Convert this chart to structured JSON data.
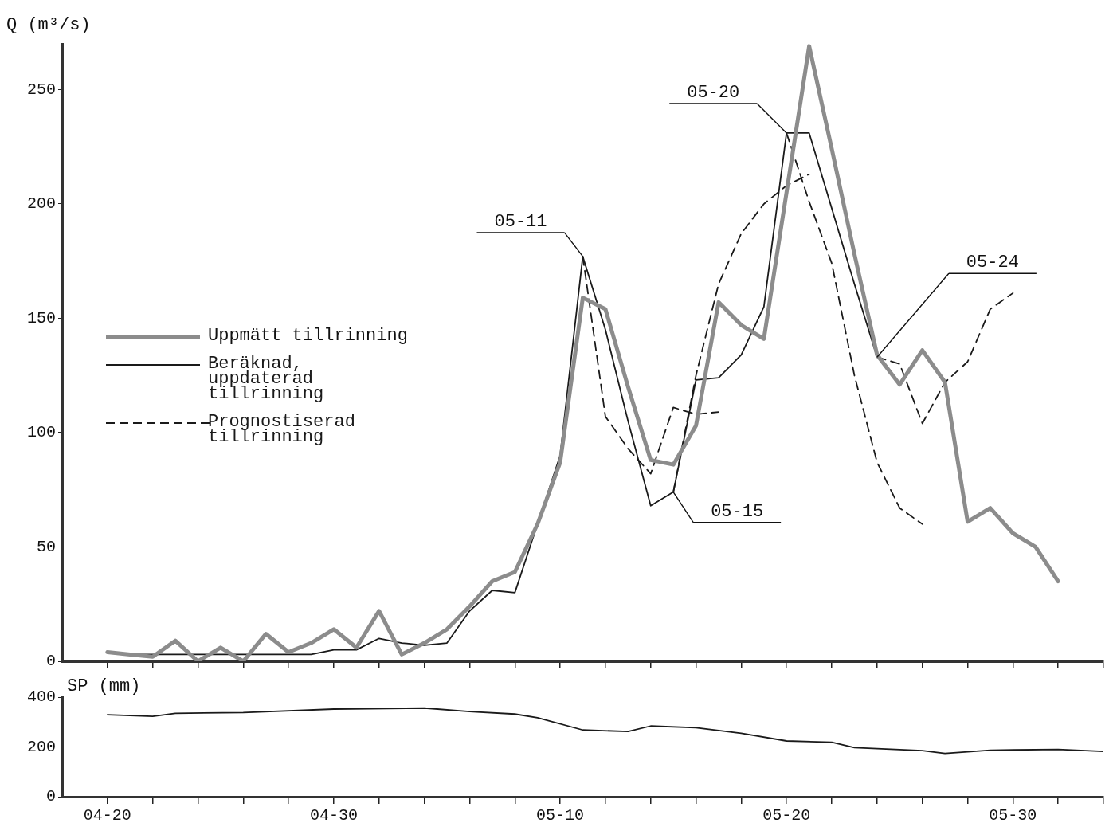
{
  "chart_data": [
    {
      "type": "line",
      "ylabel": "Q (m³/s)",
      "xlim": [
        "--04-18",
        "--06-03"
      ],
      "xticks": [
        {
          "value": "--04-20",
          "label": null
        },
        {
          "value": "--04-22",
          "label": null
        },
        {
          "value": "--04-24",
          "label": null
        },
        {
          "value": "--04-26",
          "label": null
        },
        {
          "value": "--04-28",
          "label": null
        },
        {
          "value": "--04-30",
          "label": null
        },
        {
          "value": "--05-02",
          "label": null
        },
        {
          "value": "--05-04",
          "label": null
        },
        {
          "value": "--05-06",
          "label": null
        },
        {
          "value": "--05-08",
          "label": null
        },
        {
          "value": "--05-10",
          "label": null
        },
        {
          "value": "--05-12",
          "label": null
        },
        {
          "value": "--05-14",
          "label": null
        },
        {
          "value": "--05-16",
          "label": null
        },
        {
          "value": "--05-18",
          "label": null
        },
        {
          "value": "--05-20",
          "label": null
        },
        {
          "value": "--05-22",
          "label": null
        },
        {
          "value": "--05-24",
          "label": null
        },
        {
          "value": "--05-26",
          "label": null
        },
        {
          "value": "--05-28",
          "label": null
        },
        {
          "value": "--05-30",
          "label": null
        },
        {
          "value": "--06-01",
          "label": null
        },
        {
          "value": "--06-03",
          "label": null
        }
      ],
      "ylim": [
        0,
        270
      ],
      "yticks": [
        0,
        50,
        100,
        150,
        200,
        250
      ],
      "tick_labels": "y",
      "legend": "left",
      "marker": "none",
      "series": [
        {
          "name": "Uppmätt tillrinning",
          "color": "#8c8c8c",
          "line_style": "solid",
          "x": [
            "--04-20",
            "--04-21",
            "--04-22",
            "--04-23",
            "--04-24",
            "--04-25",
            "--04-26",
            "--04-27",
            "--04-28",
            "--04-29",
            "--04-30",
            "--05-01",
            "--05-02",
            "--05-03",
            "--05-04",
            "--05-05",
            "--05-06",
            "--05-07",
            "--05-08",
            "--05-09",
            "--05-10",
            "--05-11",
            "--05-12",
            "--05-13",
            "--05-14",
            "--05-15",
            "--05-16",
            "--05-17",
            "--05-18",
            "--05-19",
            "--05-20",
            "--05-21",
            "--05-22",
            "--05-23",
            "--05-24",
            "--05-25",
            "--05-26",
            "--05-27",
            "--05-28",
            "--05-29",
            "--05-30",
            "--05-31",
            "--06-01"
          ],
          "values": [
            4,
            3,
            2,
            9,
            0,
            6,
            0,
            12,
            4,
            8,
            14,
            6,
            22,
            3,
            8,
            14,
            24,
            35,
            39,
            60,
            87,
            159,
            154,
            120,
            88,
            86,
            103,
            157,
            147,
            141,
            205,
            269,
            224,
            178,
            134,
            121,
            136,
            122,
            61,
            67,
            56,
            50,
            35
          ]
        },
        {
          "name": "Beräknad, uppdaterad tillrinning",
          "color": "#1a1a1a",
          "line_style": "solid",
          "x": [
            "--04-21",
            "--04-22",
            "--04-23",
            "--04-24",
            "--04-25",
            "--04-26",
            "--04-27",
            "--04-28",
            "--04-29",
            "--04-30",
            "--05-01",
            "--05-02",
            "--05-03",
            "--05-04",
            "--05-05",
            "--05-06",
            "--05-07",
            "--05-08",
            "--05-09",
            "--05-10",
            "--05-11",
            "--05-12",
            "--05-13",
            "--05-14",
            "--05-15",
            "--05-16",
            "--05-17",
            "--05-18",
            "--05-19",
            "--05-20",
            "--05-21",
            "--05-22",
            "--05-23",
            "--05-24"
          ],
          "values": [
            3,
            3,
            3,
            3,
            3,
            3,
            3,
            3,
            3,
            5,
            5,
            10,
            8,
            7,
            8,
            22,
            31,
            30,
            60,
            90,
            177,
            145,
            105,
            68,
            74,
            123,
            124,
            134,
            155,
            231,
            231,
            198,
            165,
            133
          ]
        },
        {
          "name": "Prognostiserad tillrinning",
          "color": "#1a1a1a",
          "line_style": "dashed",
          "x": [
            "--05-11",
            "--05-12",
            "--05-13",
            "--05-14",
            "--05-15",
            "--05-16",
            "--05-17"
          ],
          "values": [
            177,
            107,
            93,
            82,
            111,
            108,
            109
          ]
        },
        {
          "color": "#1a1a1a",
          "line_style": "dashed",
          "x": [
            "--05-15",
            "--05-16",
            "--05-17",
            "--05-18",
            "--05-19",
            "--05-20",
            "--05-21"
          ],
          "values": [
            74,
            125,
            165,
            187,
            200,
            208,
            213
          ]
        },
        {
          "color": "#1a1a1a",
          "line_style": "dashed",
          "x": [
            "--05-20",
            "--05-21",
            "--05-22",
            "--05-23",
            "--05-24",
            "--05-25",
            "--05-26"
          ],
          "values": [
            231,
            201,
            174,
            125,
            87,
            67,
            60
          ]
        },
        {
          "color": "#1a1a1a",
          "line_style": "dashed",
          "x": [
            "--05-24",
            "--05-25",
            "--05-26",
            "--05-27",
            "--05-28",
            "--05-29",
            "--05-30"
          ],
          "values": [
            133,
            130,
            104,
            122,
            131,
            154,
            161
          ]
        }
      ],
      "annotations": [
        {
          "text": "05-11",
          "x": "--05-11",
          "y": 177
        },
        {
          "text": "05-15",
          "x": "--05-15",
          "y": 74
        },
        {
          "text": "05-20",
          "x": "--05-20",
          "y": 231
        },
        {
          "text": "05-24",
          "x": "--05-24",
          "y": 133
        }
      ]
    },
    {
      "type": "line",
      "ylabel": "SP (mm)",
      "xlim": [
        "--04-18",
        "--06-03"
      ],
      "xticks": [
        {
          "value": "--04-20",
          "label": "04-20"
        },
        {
          "value": "--04-22",
          "label": null
        },
        {
          "value": "--04-24",
          "label": null
        },
        {
          "value": "--04-26",
          "label": null
        },
        {
          "value": "--04-28",
          "label": null
        },
        {
          "value": "--04-30",
          "label": "04-30"
        },
        {
          "value": "--05-02",
          "label": null
        },
        {
          "value": "--05-04",
          "label": null
        },
        {
          "value": "--05-06",
          "label": null
        },
        {
          "value": "--05-08",
          "label": null
        },
        {
          "value": "--05-10",
          "label": "05-10"
        },
        {
          "value": "--05-12",
          "label": null
        },
        {
          "value": "--05-14",
          "label": null
        },
        {
          "value": "--05-16",
          "label": null
        },
        {
          "value": "--05-18",
          "label": null
        },
        {
          "value": "--05-20",
          "label": "05-20"
        },
        {
          "value": "--05-22",
          "label": null
        },
        {
          "value": "--05-24",
          "label": null
        },
        {
          "value": "--05-26",
          "label": null
        },
        {
          "value": "--05-28",
          "label": null
        },
        {
          "value": "--05-30",
          "label": "05-30"
        },
        {
          "value": "--06-01",
          "label": null
        },
        {
          "value": "--06-03",
          "label": null
        }
      ],
      "ylim": [
        0,
        400
      ],
      "yticks": [
        0,
        200,
        400
      ],
      "marker": "none",
      "series": [
        {
          "color": "#1a1a1a",
          "line_style": "solid",
          "x": [
            "--04-20",
            "--04-22",
            "--04-23",
            "--04-26",
            "--04-30",
            "--05-04",
            "--05-06",
            "--05-08",
            "--05-09",
            "--05-11",
            "--05-13",
            "--05-14",
            "--05-16",
            "--05-18",
            "--05-20",
            "--05-22",
            "--05-23",
            "--05-26",
            "--05-27",
            "--05-29",
            "--06-01",
            "--06-03"
          ],
          "values": [
            329,
            323,
            335,
            338,
            352,
            356,
            342,
            332,
            317,
            268,
            262,
            284,
            277,
            255,
            224,
            219,
            197,
            185,
            174,
            187,
            190,
            182
          ]
        }
      ]
    }
  ]
}
